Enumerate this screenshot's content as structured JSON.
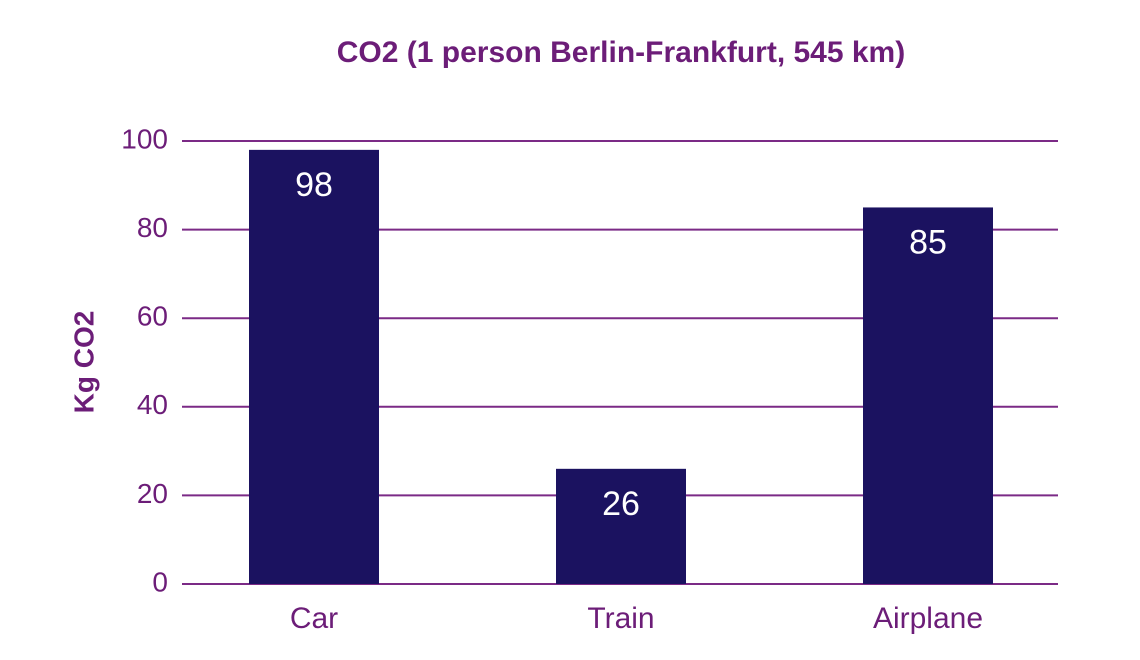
{
  "colors": {
    "text": "#6c1d78",
    "bar": "#1b1260",
    "grid": "#7b2a86",
    "bar_label": "#ffffff",
    "background": "#ffffff"
  },
  "chart_data": {
    "type": "bar",
    "title": "CO2 (1 person Berlin-Frankfurt, 545 km)",
    "xlabel": "",
    "ylabel": "Kg CO2",
    "categories": [
      "Car",
      "Train",
      "Airplane"
    ],
    "values": [
      98,
      26,
      85
    ],
    "data_labels": [
      "98",
      "26",
      "85"
    ],
    "ylim": [
      0,
      100
    ],
    "yticks": [
      0,
      20,
      40,
      60,
      80,
      100
    ],
    "ytick_labels": [
      "0",
      "20",
      "40",
      "60",
      "80",
      "100"
    ],
    "grid": true,
    "legend": "none"
  }
}
